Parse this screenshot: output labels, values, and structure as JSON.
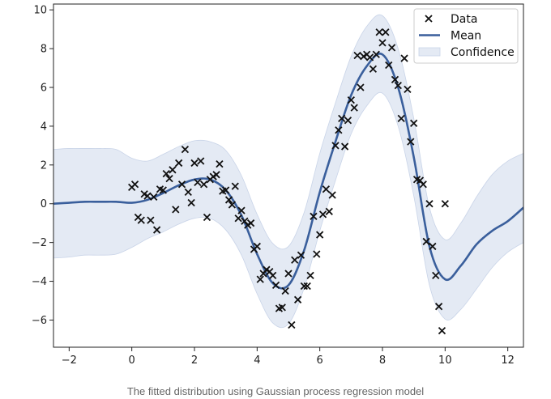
{
  "caption": "The fitted distribution using Gaussian process regression model",
  "colors": {
    "mean": "#3a5f9c",
    "confidence_fill": "#e4eaf4",
    "confidence_edge": "#c9d4e8",
    "data": "#111111"
  },
  "chart_data": {
    "type": "scatter",
    "xlim": [
      -2.5,
      12.5
    ],
    "ylim": [
      -7.4,
      10.3
    ],
    "xticks": [
      -2,
      0,
      2,
      4,
      6,
      8,
      10,
      12
    ],
    "yticks": [
      -6,
      -4,
      -2,
      0,
      2,
      4,
      6,
      8,
      10
    ],
    "grid": false,
    "legend": {
      "position": "top-right",
      "entries": [
        {
          "label": "Data",
          "kind": "marker-x"
        },
        {
          "label": "Mean",
          "kind": "line"
        },
        {
          "label": "Confidence",
          "kind": "patch"
        }
      ]
    },
    "mean": {
      "name": "Mean",
      "x": [
        -2.5,
        -2,
        -1.5,
        -1,
        -0.5,
        0,
        0.5,
        1,
        1.5,
        2,
        2.5,
        3,
        3.5,
        4,
        4.5,
        5,
        5.5,
        6,
        6.5,
        7,
        7.5,
        8,
        8.5,
        9,
        9.5,
        10,
        10.5,
        11,
        11.5,
        12,
        12.5
      ],
      "y": [
        0,
        0.05,
        0.1,
        0.1,
        0.1,
        0.05,
        0.2,
        0.55,
        0.95,
        1.25,
        1.25,
        0.7,
        -0.6,
        -2.6,
        -4.1,
        -4.2,
        -2.4,
        0.6,
        3.2,
        5.6,
        7.1,
        7.7,
        6.0,
        2.4,
        -2.2,
        -3.9,
        -3.2,
        -2.1,
        -1.4,
        -0.9,
        -0.2
      ]
    },
    "confidence": {
      "name": "Confidence",
      "x": [
        -2.5,
        -2,
        -1.5,
        -1,
        -0.5,
        0,
        0.5,
        1,
        1.5,
        2,
        2.5,
        3,
        3.5,
        4,
        4.5,
        5,
        5.5,
        6,
        6.5,
        7,
        7.5,
        8,
        8.5,
        9,
        9.5,
        10,
        10.5,
        11,
        11.5,
        12,
        12.5
      ],
      "upper": [
        2.8,
        2.85,
        2.85,
        2.85,
        2.8,
        2.35,
        2.2,
        2.55,
        2.95,
        3.25,
        3.2,
        2.75,
        1.45,
        -0.55,
        -2.05,
        -2.2,
        -0.45,
        2.6,
        5.2,
        7.6,
        9.15,
        9.7,
        8.0,
        4.4,
        -0.2,
        -1.85,
        -1.0,
        0.35,
        1.5,
        2.2,
        2.6
      ],
      "lower": [
        -2.8,
        -2.75,
        -2.65,
        -2.65,
        -2.6,
        -2.25,
        -1.8,
        -1.45,
        -1.05,
        -0.75,
        -0.75,
        -1.35,
        -2.65,
        -4.65,
        -6.15,
        -6.2,
        -4.35,
        -1.4,
        1.2,
        3.6,
        5.05,
        5.7,
        4.0,
        0.4,
        -4.2,
        -5.95,
        -5.45,
        -4.4,
        -3.3,
        -2.5,
        -2.0
      ]
    },
    "data": {
      "name": "Data",
      "x": [
        0.0,
        0.1,
        0.2,
        0.3,
        0.4,
        0.5,
        0.6,
        0.7,
        0.8,
        0.9,
        1.0,
        1.1,
        1.2,
        1.3,
        1.4,
        1.5,
        1.6,
        1.7,
        1.8,
        1.9,
        2.0,
        2.1,
        2.2,
        2.3,
        2.4,
        2.5,
        2.6,
        2.7,
        2.8,
        2.9,
        3.0,
        3.1,
        3.2,
        3.3,
        3.4,
        3.5,
        3.6,
        3.7,
        3.8,
        3.9,
        4.0,
        4.1,
        4.2,
        4.3,
        4.4,
        4.5,
        4.6,
        4.7,
        4.8,
        4.9,
        5.0,
        5.1,
        5.2,
        5.3,
        5.4,
        5.5,
        5.6,
        5.7,
        5.8,
        5.9,
        6.0,
        6.1,
        6.2,
        6.3,
        6.4,
        6.5,
        6.6,
        6.7,
        6.8,
        6.9,
        7.0,
        7.1,
        7.2,
        7.3,
        7.4,
        7.5,
        7.6,
        7.7,
        7.8,
        7.9,
        8.0,
        8.1,
        8.2,
        8.3,
        8.4,
        8.5,
        8.6,
        8.7,
        8.8,
        8.9,
        9.0,
        9.1,
        9.2,
        9.3,
        9.4,
        9.5,
        9.6,
        9.7,
        9.8,
        9.9,
        10.0
      ],
      "y": [
        0.85,
        1.0,
        -0.7,
        -0.85,
        0.5,
        0.4,
        -0.85,
        0.35,
        -1.35,
        0.75,
        0.7,
        1.55,
        1.3,
        1.75,
        -0.3,
        2.1,
        1.0,
        2.8,
        0.6,
        0.05,
        2.1,
        1.1,
        2.2,
        1.0,
        -0.7,
        1.25,
        1.4,
        1.5,
        2.05,
        0.65,
        0.7,
        0.2,
        -0.05,
        0.9,
        -0.75,
        -0.35,
        -0.9,
        -1.1,
        -1.0,
        -2.35,
        -2.2,
        -3.9,
        -3.6,
        -3.4,
        -3.5,
        -3.7,
        -4.2,
        -5.4,
        -5.35,
        -4.5,
        -3.6,
        -6.25,
        -2.9,
        -4.95,
        -2.65,
        -4.25,
        -4.25,
        -3.7,
        -0.65,
        -2.6,
        -1.6,
        -0.55,
        0.75,
        -0.4,
        0.45,
        3.0,
        3.8,
        4.4,
        2.95,
        4.3,
        5.35,
        4.95,
        7.65,
        6.0,
        7.6,
        7.7,
        7.55,
        6.95,
        7.7,
        8.85,
        8.3,
        8.85,
        7.15,
        8.05,
        6.4,
        6.1,
        4.4,
        7.5,
        5.9,
        3.2,
        4.15,
        1.25,
        1.2,
        1.0,
        -1.95,
        0.0,
        -2.2,
        -3.7,
        -5.3,
        -6.55,
        0
      ]
    }
  }
}
